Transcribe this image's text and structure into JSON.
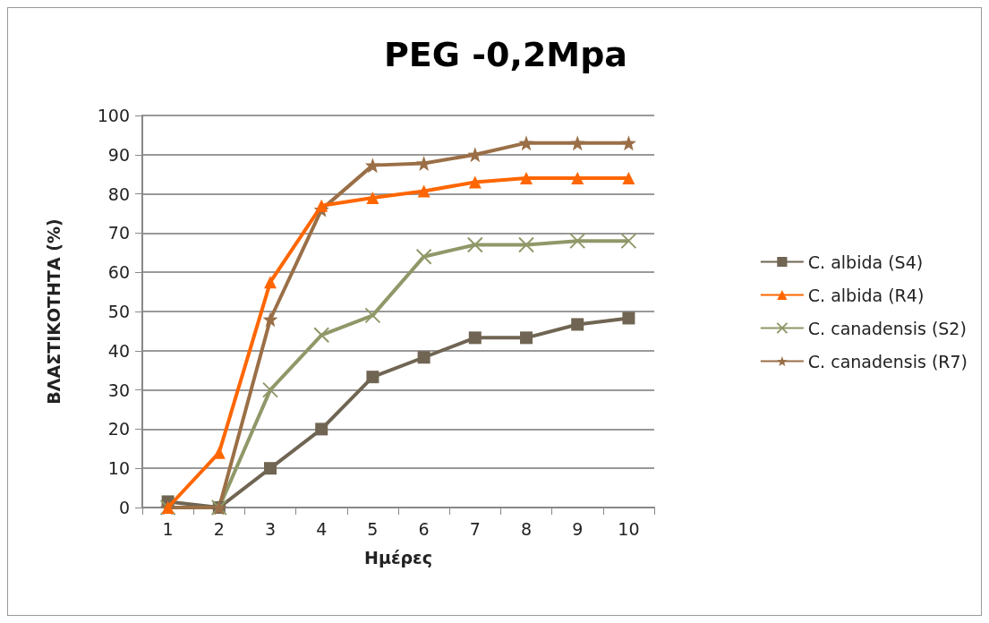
{
  "chart_data": {
    "type": "line",
    "title": "PEG -0,2Mpa",
    "xlabel": "Ημέρες",
    "ylabel": "ΒΛΑΣΤΙΚΟΤΗΤΑ (%)",
    "categories": [
      "1",
      "2",
      "3",
      "4",
      "5",
      "6",
      "7",
      "8",
      "9",
      "10"
    ],
    "series": [
      {
        "name": "C. albida (S4)",
        "color": "#706553",
        "marker": "square",
        "values": [
          1.5,
          0,
          10,
          20,
          33.3,
          38.3,
          43.3,
          43.3,
          46.7,
          48.3
        ]
      },
      {
        "name": "C. albida (R4)",
        "color": "#ff6600",
        "marker": "triangle",
        "values": [
          0,
          14,
          57.5,
          77,
          79,
          80.7,
          83,
          84,
          84,
          84
        ]
      },
      {
        "name": "C. canadensis (S2)",
        "color": "#8f9868",
        "marker": "cross",
        "values": [
          0,
          0,
          30,
          44,
          49,
          64,
          67,
          67,
          68,
          68
        ]
      },
      {
        "name": "C. canadensis (R7)",
        "color": "#9a6f47",
        "marker": "star",
        "values": [
          0,
          0,
          48,
          76,
          87.3,
          87.8,
          90,
          93,
          93,
          93
        ]
      }
    ],
    "ylim": [
      0,
      100
    ],
    "yticks": [
      0,
      10,
      20,
      30,
      40,
      50,
      60,
      70,
      80,
      90,
      100
    ],
    "grid": "y",
    "legend": "right"
  }
}
